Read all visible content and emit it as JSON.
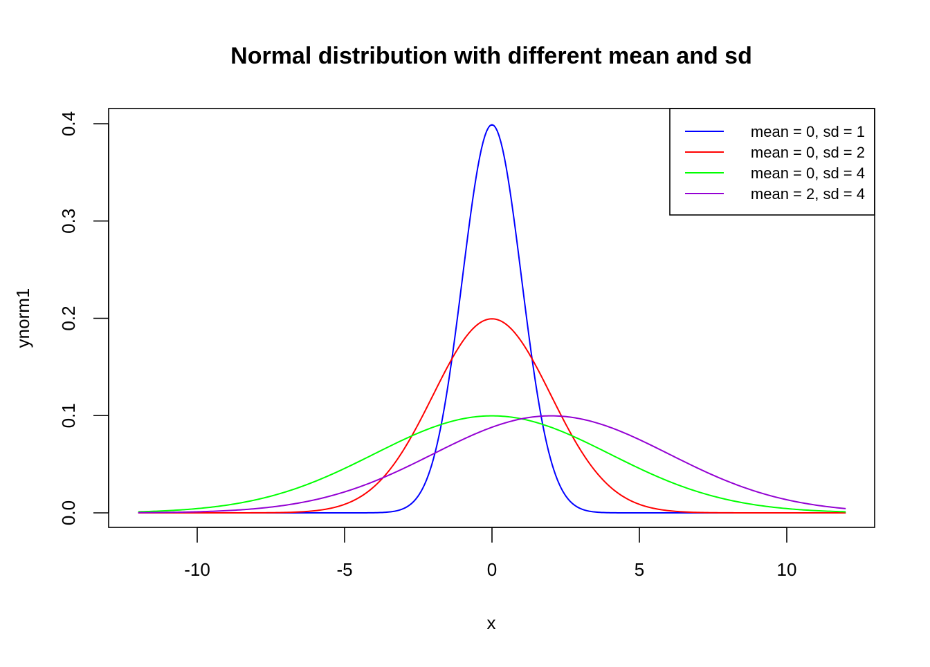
{
  "chart_data": {
    "type": "line",
    "title": "Normal distribution with different mean and sd",
    "xlabel": "x",
    "ylabel": "ynorm1",
    "xlim": [
      -12,
      12
    ],
    "ylim": [
      0,
      0.4
    ],
    "x_ticks": [
      {
        "value": -10,
        "label": "-10"
      },
      {
        "value": -5,
        "label": "-5"
      },
      {
        "value": 0,
        "label": "0"
      },
      {
        "value": 5,
        "label": "5"
      },
      {
        "value": 10,
        "label": "10"
      }
    ],
    "y_ticks": [
      {
        "value": 0,
        "label": "0.0"
      },
      {
        "value": 0.1,
        "label": "0.1"
      },
      {
        "value": 0.2,
        "label": "0.2"
      },
      {
        "value": 0.3,
        "label": "0.3"
      },
      {
        "value": 0.4,
        "label": "0.4"
      }
    ],
    "grid": false,
    "legend_position": "top-right",
    "series": [
      {
        "name": "mean = 0, sd = 1",
        "mean": 0,
        "sd": 1,
        "color": "#0000ff"
      },
      {
        "name": "mean = 0, sd = 2",
        "mean": 0,
        "sd": 2,
        "color": "#ff0000"
      },
      {
        "name": "mean = 0, sd = 4",
        "mean": 0,
        "sd": 4,
        "color": "#00ff00"
      },
      {
        "name": "mean = 2, sd = 4",
        "mean": 2,
        "sd": 4,
        "color": "#9400d3"
      }
    ]
  }
}
